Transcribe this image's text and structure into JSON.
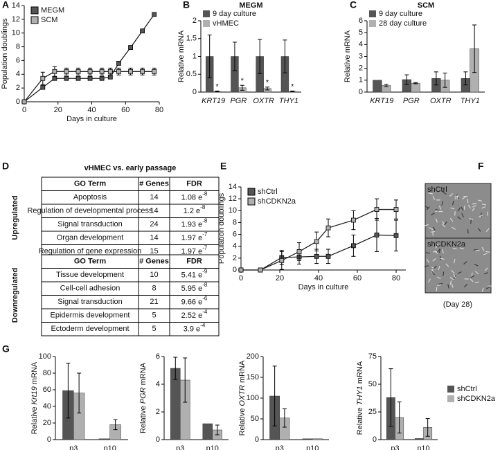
{
  "chart_data": [
    {
      "panel": "A",
      "type": "line",
      "xlabel": "Days in culture",
      "ylabel": "Population doublings",
      "xlim": [
        0,
        80
      ],
      "xticks": [
        0,
        20,
        40,
        60,
        80
      ],
      "ylim": [
        0,
        14
      ],
      "yticks": [
        0,
        2,
        4,
        6,
        8,
        10,
        12,
        14
      ],
      "legend": "upper left",
      "series": [
        {
          "name": "MEGM",
          "color": "#555555",
          "x": [
            0,
            11,
            18,
            25,
            32,
            39,
            46,
            51,
            56,
            63,
            70,
            77
          ],
          "values": [
            0,
            2.1,
            3.4,
            3.4,
            3.4,
            3.4,
            3.4,
            3.6,
            5.6,
            7.9,
            10.3,
            12.7
          ]
        },
        {
          "name": "SCM",
          "color": "#b0b0b0",
          "x": [
            0,
            11,
            18,
            25,
            32,
            39,
            46,
            51,
            56,
            63,
            70,
            77
          ],
          "values": [
            0,
            3.4,
            4.4,
            4.4,
            4.4,
            4.4,
            4.4,
            4.4,
            4.4,
            4.4,
            4.4,
            4.4
          ],
          "errors": [
            0,
            0.9,
            0.7,
            0.5,
            0.5,
            0.5,
            0.5,
            0.5,
            0.5,
            0.5,
            0.5,
            0.5
          ]
        }
      ]
    },
    {
      "panel": "B",
      "type": "bar",
      "title": "MEGM",
      "ylabel": "Relative mRNA",
      "categories": [
        "KRT19",
        "PGR",
        "OXTR",
        "THY1"
      ],
      "italic_categories": true,
      "ylim": [
        0,
        2
      ],
      "yticks": [
        0,
        0.5,
        1,
        1.5,
        2
      ],
      "legend": "upper left",
      "annotations": [
        "*",
        "*",
        "*",
        "*"
      ],
      "series": [
        {
          "name": "9 day culture",
          "color": "#555555",
          "values": [
            1,
            1,
            1,
            1
          ],
          "errors": [
            0.6,
            0.4,
            0.48,
            0.46
          ]
        },
        {
          "name": "vHMEC",
          "color": "#b0b0b0",
          "values": [
            0.02,
            0.12,
            0.1,
            0.02
          ],
          "errors": [
            0.01,
            0.07,
            0.04,
            0.01
          ]
        }
      ]
    },
    {
      "panel": "C",
      "type": "bar",
      "title": "SCM",
      "ylabel": "Relative mRNA",
      "categories": [
        "KRT19",
        "PGR",
        "OXTR",
        "THY1"
      ],
      "italic_categories": true,
      "ylim": [
        0,
        6
      ],
      "yticks": [
        0,
        1,
        2,
        3,
        4,
        5,
        6
      ],
      "legend": "upper left",
      "series": [
        {
          "name": "9 day culture",
          "color": "#555555",
          "values": [
            1,
            1.05,
            1.15,
            1.15
          ],
          "errors": [
            0,
            0.4,
            0.55,
            0.55
          ]
        },
        {
          "name": "28 day culture",
          "color": "#b0b0b0",
          "values": [
            0.55,
            0.75,
            1.0,
            3.65
          ],
          "errors": [
            0.1,
            0.05,
            0.6,
            2.0
          ]
        }
      ]
    },
    {
      "panel": "E",
      "type": "line",
      "xlabel": "Days in culture",
      "ylabel": "Population doublings",
      "xlim": [
        0,
        85
      ],
      "xticks": [
        0,
        20,
        40,
        60,
        80
      ],
      "ylim": [
        0,
        14
      ],
      "yticks": [
        0,
        2,
        4,
        6,
        8,
        10,
        12,
        14
      ],
      "legend": "upper left",
      "series": [
        {
          "name": "shCtrl",
          "color": "#555555",
          "x": [
            0,
            10,
            21,
            30,
            39,
            45,
            58,
            70,
            80
          ],
          "values": [
            0,
            0,
            2.1,
            2.2,
            2.3,
            2.3,
            4.1,
            5.9,
            5.8
          ],
          "errors": [
            0,
            0,
            1.2,
            1.2,
            1.2,
            1.2,
            1.8,
            2.8,
            2.6
          ]
        },
        {
          "name": "shCDKN2a",
          "color": "#b0b0b0",
          "x": [
            0,
            10,
            21,
            30,
            39,
            45,
            58,
            70,
            80
          ],
          "values": [
            0,
            0,
            1.6,
            3.1,
            4.8,
            7.1,
            8.4,
            10.2,
            10.2
          ],
          "errors": [
            0,
            0,
            1.5,
            1.5,
            1.6,
            1.5,
            1.6,
            1.8,
            1.6
          ]
        }
      ]
    },
    {
      "panel": "G",
      "type": "bar",
      "ylabel_parts": [
        "Relative ",
        "Krt19",
        " mRNA"
      ],
      "categories": [
        "p3",
        "p10"
      ],
      "ylim": [
        0,
        100
      ],
      "yticks": [
        0,
        20,
        40,
        60,
        80,
        100
      ],
      "series": [
        {
          "name": "shCtrl",
          "color": "#555555",
          "values": [
            59,
            1
          ],
          "errors": [
            33,
            0
          ]
        },
        {
          "name": "shCDKN2a",
          "color": "#b0b0b0",
          "values": [
            56,
            18
          ],
          "errors": [
            24,
            6
          ]
        }
      ]
    },
    {
      "type": "bar",
      "ylabel_parts": [
        "Relative ",
        "PGR",
        " mRNA"
      ],
      "categories": [
        "p3",
        "p10"
      ],
      "ylim": [
        0,
        6
      ],
      "yticks": [
        0,
        2,
        4,
        6
      ],
      "series": [
        {
          "name": "shCtrl",
          "color": "#555555",
          "values": [
            5.15,
            1.15
          ],
          "errors": [
            0.8,
            0
          ]
        },
        {
          "name": "shCDKN2a",
          "color": "#b0b0b0",
          "values": [
            4.3,
            0.7
          ],
          "errors": [
            1.6,
            0.35
          ]
        }
      ]
    },
    {
      "type": "bar",
      "ylabel_parts": [
        "Relative ",
        "OXTR",
        " mRNA"
      ],
      "categories": [
        "p3",
        "p10"
      ],
      "ylim": [
        0,
        200
      ],
      "yticks": [
        0,
        50,
        100,
        150,
        200
      ],
      "series": [
        {
          "name": "shCtrl",
          "color": "#555555",
          "values": [
            105,
            2
          ],
          "errors": [
            72,
            0
          ]
        },
        {
          "name": "shCDKN2a",
          "color": "#b0b0b0",
          "values": [
            52,
            2
          ],
          "errors": [
            22,
            0
          ]
        }
      ]
    },
    {
      "type": "bar",
      "ylabel_parts": [
        "Relative ",
        "THY1",
        " mRNA"
      ],
      "categories": [
        "p3",
        "p10"
      ],
      "ylim": [
        0,
        75
      ],
      "yticks": [
        0,
        25,
        50,
        75
      ],
      "legend": "outside right",
      "series": [
        {
          "name": "shCtrl",
          "color": "#555555",
          "values": [
            38,
            1
          ],
          "errors": [
            26,
            0
          ]
        },
        {
          "name": "shCDKN2a",
          "color": "#b0b0b0",
          "values": [
            20,
            11
          ],
          "errors": [
            14,
            8
          ]
        }
      ]
    }
  ],
  "table_panel": {
    "panel": "D",
    "title": "vHMEC vs. early passage",
    "groups": [
      {
        "label": "Upregulated",
        "header": [
          "GO Term",
          "# Genes",
          "FDR"
        ],
        "rows": [
          [
            "Apoptosis",
            14,
            {
              "base": "1.08 e",
              "exp": "-8"
            }
          ],
          [
            "Regulation of developmental process",
            14,
            {
              "base": "1.2 e",
              "exp": "-8"
            }
          ],
          [
            "Signal transduction",
            24,
            {
              "base": "1.93 e",
              "exp": "-8"
            }
          ],
          [
            "Organ development",
            14,
            {
              "base": "1.97 e",
              "exp": "-7"
            }
          ],
          [
            "Regulation of gene expression",
            15,
            {
              "base": "1.97 e",
              "exp": "-7"
            }
          ]
        ]
      },
      {
        "label": "Downregulated",
        "header": [
          "GO Term",
          "# Genes",
          "FDR"
        ],
        "rows": [
          [
            "Tissue development",
            10,
            {
              "base": "5.41 e",
              "exp": "-9"
            }
          ],
          [
            "Cell-cell adhesion",
            8,
            {
              "base": "5.95 e",
              "exp": "-8"
            }
          ],
          [
            "Signal transduction",
            21,
            {
              "base": "9.66 e",
              "exp": "-6"
            }
          ],
          [
            "Epidermis development",
            5,
            {
              "base": "2.52 e",
              "exp": "-4"
            }
          ],
          [
            "Ectoderm development",
            5,
            {
              "base": "3.9 e",
              "exp": "-4"
            }
          ]
        ]
      }
    ]
  },
  "image_panel": {
    "panel": "F",
    "images": [
      "shCtrl",
      "shCDKN2a"
    ],
    "caption": "(Day 28)"
  }
}
